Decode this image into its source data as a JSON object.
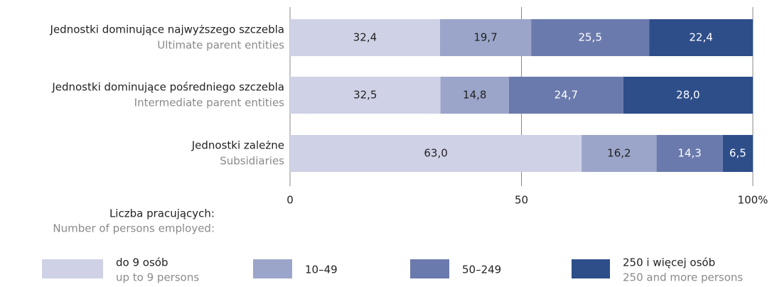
{
  "chart_data": {
    "type": "stacked_barh",
    "categories": [
      "Jednostki dominujące najwyższego szczebla",
      "Jednostki dominujące pośredniego szczebla",
      "Jednostki zależne"
    ],
    "categories_en": [
      "Ultimate parent entities",
      "Intermediate parent entities",
      "Subsidiaries"
    ],
    "series": [
      {
        "name": "do 9 osób",
        "name_en": "up to 9 persons",
        "color": "#cfd2e6",
        "label_color": "#222222",
        "values": [
          32.4,
          32.5,
          63.0
        ],
        "value_labels": [
          "32,4",
          "32,5",
          "63,0"
        ]
      },
      {
        "name": "10–49",
        "color": "#9ba5c9",
        "label_color": "#222222",
        "values": [
          19.7,
          14.8,
          16.2
        ],
        "value_labels": [
          "19,7",
          "14,8",
          "16,2"
        ]
      },
      {
        "name": "50–249",
        "color": "#6b7aad",
        "label_color": "#ffffff",
        "values": [
          25.5,
          24.7,
          14.3
        ],
        "value_labels": [
          "25,5",
          "24,7",
          "14,3"
        ]
      },
      {
        "name": "250 i więcej osób",
        "name_en": "250 and more persons",
        "color": "#2e4e8a",
        "label_color": "#ffffff",
        "values": [
          22.4,
          28.0,
          6.5
        ],
        "value_labels": [
          "22,4",
          "28,0",
          "6,5"
        ]
      }
    ],
    "xlim": [
      0,
      100
    ],
    "xticks": [
      0,
      50,
      {
        "value": 100,
        "label": "100%"
      }
    ],
    "grid": true,
    "legend_title": "Liczba pracujących:",
    "legend_title_en": "Number of persons employed:"
  }
}
